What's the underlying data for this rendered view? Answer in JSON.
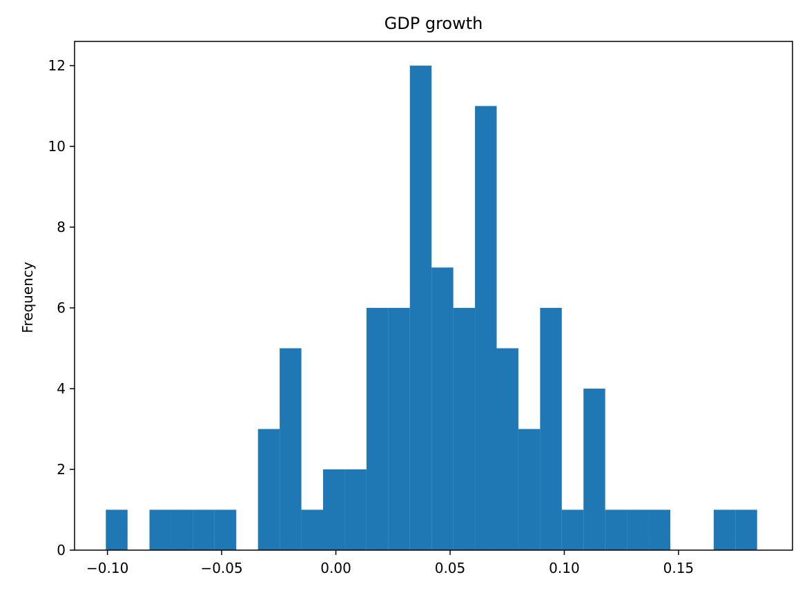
{
  "chart_data": {
    "type": "bar",
    "title": "GDP growth",
    "xlabel": "",
    "ylabel": "Frequency",
    "xlim": [
      -0.1144,
      0.1999
    ],
    "ylim": [
      0,
      12.6
    ],
    "bar_color": "#1f77b4",
    "grid": false,
    "x_ticks": [
      -0.1,
      -0.05,
      0.0,
      0.05,
      0.1,
      0.15
    ],
    "x_tick_labels": [
      "−0.10",
      "−0.05",
      "0.00",
      "0.05",
      "0.10",
      "0.15"
    ],
    "y_ticks": [
      0,
      2,
      4,
      6,
      8,
      10,
      12
    ],
    "y_tick_labels": [
      "0",
      "2",
      "4",
      "6",
      "8",
      "10",
      "12"
    ],
    "bin_edges": [
      -0.1007,
      -0.0912,
      -0.0816,
      -0.0721,
      -0.0626,
      -0.0531,
      -0.0436,
      -0.0341,
      -0.0246,
      -0.0151,
      -0.0056,
      0.0039,
      0.0134,
      0.0229,
      0.0324,
      0.0419,
      0.0514,
      0.0609,
      0.0704,
      0.0799,
      0.0894,
      0.0989,
      0.1084,
      0.1179,
      0.1274,
      0.1369,
      0.1464,
      0.1559,
      0.1654,
      0.1749,
      0.1844
    ],
    "counts": [
      1,
      0,
      1,
      1,
      1,
      1,
      0,
      3,
      5,
      1,
      2,
      2,
      6,
      6,
      12,
      7,
      6,
      11,
      5,
      3,
      6,
      1,
      4,
      1,
      1,
      1,
      0,
      0,
      1,
      1
    ]
  }
}
